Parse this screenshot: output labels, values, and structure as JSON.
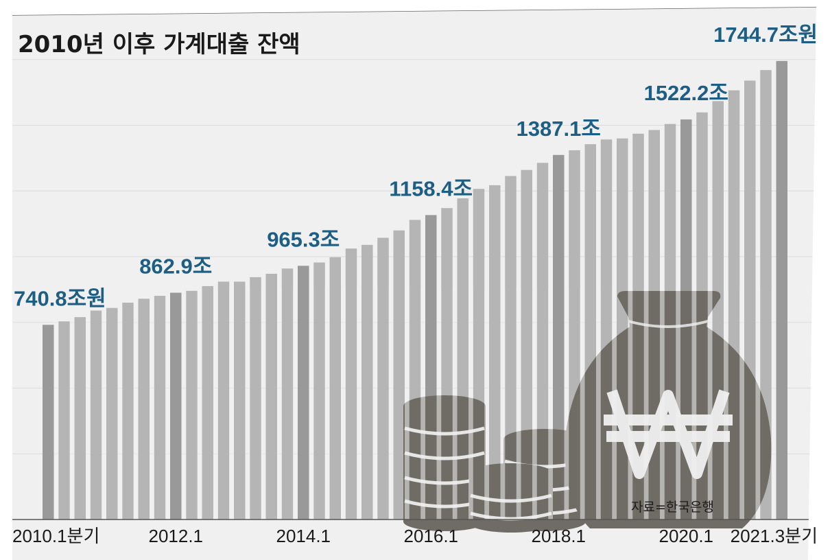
{
  "chart_data": {
    "type": "bar",
    "title": "2010년 이후 가계대출 잔액",
    "xlabel": "",
    "ylabel": "",
    "unit": "조원",
    "categories": [
      "2010.1",
      "2010.2",
      "2010.3",
      "2010.4",
      "2011.1",
      "2011.2",
      "2011.3",
      "2011.4",
      "2012.1",
      "2012.2",
      "2012.3",
      "2012.4",
      "2013.1",
      "2013.2",
      "2013.3",
      "2013.4",
      "2014.1",
      "2014.2",
      "2014.3",
      "2014.4",
      "2015.1",
      "2015.2",
      "2015.3",
      "2015.4",
      "2016.1",
      "2016.2",
      "2016.3",
      "2016.4",
      "2017.1",
      "2017.2",
      "2017.3",
      "2017.4",
      "2018.1",
      "2018.2",
      "2018.3",
      "2018.4",
      "2019.1",
      "2019.2",
      "2019.3",
      "2019.4",
      "2020.1",
      "2020.2",
      "2020.3",
      "2020.4",
      "2021.1",
      "2021.2",
      "2021.3"
    ],
    "values": [
      740.8,
      754,
      770,
      795,
      805,
      825,
      840,
      851,
      862.9,
      870,
      888,
      905,
      905,
      922,
      935,
      955,
      965.3,
      978,
      998,
      1031,
      1045,
      1072,
      1100,
      1140,
      1158.4,
      1185,
      1222,
      1258,
      1272,
      1307,
      1330,
      1357,
      1387.1,
      1405,
      1428,
      1446,
      1450,
      1468,
      1482,
      1505,
      1522.2,
      1549,
      1592,
      1633,
      1670,
      1710,
      1744.7
    ],
    "ylim": [
      0,
      1820
    ],
    "x_tick_labels": [
      {
        "index": 0,
        "label": "2010.1분기"
      },
      {
        "index": 8,
        "label": "2012.1"
      },
      {
        "index": 16,
        "label": "2014.1"
      },
      {
        "index": 24,
        "label": "2016.1"
      },
      {
        "index": 32,
        "label": "2018.1"
      },
      {
        "index": 40,
        "label": "2020.1"
      },
      {
        "index": 46,
        "label": "2021.3분기"
      }
    ],
    "callouts": [
      {
        "index": 0,
        "label": "740.8조원"
      },
      {
        "index": 8,
        "label": "862.9조"
      },
      {
        "index": 16,
        "label": "965.3조"
      },
      {
        "index": 24,
        "label": "1158.4조"
      },
      {
        "index": 32,
        "label": "1387.1조"
      },
      {
        "index": 40,
        "label": "1522.2조"
      },
      {
        "index": 46,
        "label": "1744.7조원"
      }
    ],
    "highlight_indices": [
      0,
      8,
      16,
      24,
      32,
      40,
      46
    ],
    "grid": true,
    "legend": "none",
    "source": "자료=한국은행",
    "colors": {
      "bar": "#b5b5b5",
      "bar_highlight": "#999999",
      "callout": "#1d5f84",
      "background": "#f0f0f0",
      "illustration": "#6e6c64"
    },
    "illustration_icons": [
      "coin-stack-icon",
      "coin-stack-icon",
      "coin-stack-icon",
      "won-money-bag-icon"
    ]
  }
}
